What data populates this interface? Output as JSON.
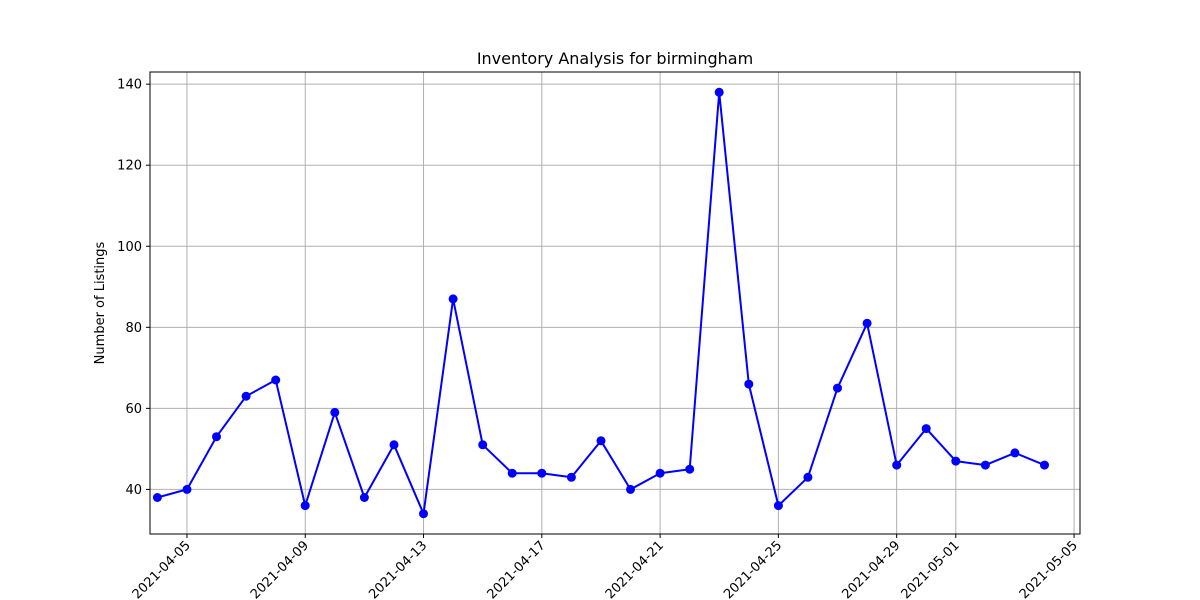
{
  "chart_data": {
    "type": "line",
    "title": "Inventory Analysis for birmingham",
    "xlabel": "",
    "ylabel": "Number of Listings",
    "x_tick_labels": [
      "2021-04-05",
      "2021-04-09",
      "2021-04-13",
      "2021-04-17",
      "2021-04-21",
      "2021-04-25",
      "2021-04-29",
      "2021-05-01",
      "2021-05-05"
    ],
    "y_tick_labels": [
      "40",
      "60",
      "80",
      "100",
      "120",
      "140"
    ],
    "xlim": [
      "2021-04-03",
      "2021-05-05"
    ],
    "ylim": [
      29,
      143
    ],
    "grid": true,
    "series": [
      {
        "color": "#0000ff",
        "marker": "circle",
        "x": [
          "2021-04-04",
          "2021-04-05",
          "2021-04-06",
          "2021-04-07",
          "2021-04-08",
          "2021-04-09",
          "2021-04-10",
          "2021-04-11",
          "2021-04-12",
          "2021-04-13",
          "2021-04-14",
          "2021-04-15",
          "2021-04-16",
          "2021-04-17",
          "2021-04-18",
          "2021-04-19",
          "2021-04-20",
          "2021-04-21",
          "2021-04-22",
          "2021-04-23",
          "2021-04-24",
          "2021-04-25",
          "2021-04-26",
          "2021-04-27",
          "2021-04-28",
          "2021-04-29",
          "2021-04-30",
          "2021-05-01",
          "2021-05-02",
          "2021-05-03",
          "2021-05-04"
        ],
        "y": [
          38,
          40,
          53,
          63,
          67,
          36,
          59,
          38,
          51,
          34,
          87,
          51,
          44,
          44,
          43,
          52,
          40,
          44,
          45,
          138,
          66,
          36,
          43,
          65,
          81,
          46,
          55,
          47,
          46,
          49,
          46
        ]
      }
    ]
  }
}
